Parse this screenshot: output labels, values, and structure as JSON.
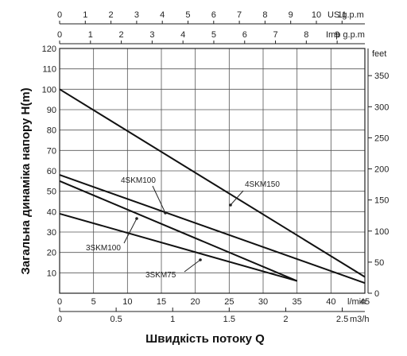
{
  "chart_data": {
    "type": "line",
    "ylabel": "Загальна динаміка напору H(m)",
    "xlabel": "Швидкість потоку Q",
    "x_unit": "l/min",
    "x_ticks": [
      0,
      5,
      10,
      15,
      20,
      25,
      30,
      35,
      40,
      45
    ],
    "xlim": [
      0,
      45
    ],
    "y_ticks": [
      0,
      10,
      20,
      30,
      40,
      50,
      60,
      70,
      80,
      90,
      100,
      110,
      120
    ],
    "ylim": [
      0,
      120
    ],
    "grid": true,
    "top_axis_us": {
      "unit": "US g.p.m",
      "ticks": [
        "0",
        "1",
        "2",
        "3",
        "4",
        "5",
        "6",
        "7",
        "8",
        "9",
        "10",
        "11"
      ]
    },
    "top_axis_imp": {
      "unit": "Imp g.p.m",
      "ticks": [
        "0",
        "1",
        "2",
        "3",
        "4",
        "5",
        "6",
        "7",
        "8",
        "9"
      ]
    },
    "right_axis_feet": {
      "unit": "feet",
      "ticks": [
        "0",
        "50",
        "100",
        "150",
        "200",
        "250",
        "300",
        "350"
      ]
    },
    "bottom_axis_m3h": {
      "unit": "m3/h",
      "ticks": [
        "0",
        "0.5",
        "1",
        "1.5",
        "2",
        "2.5"
      ]
    },
    "series": [
      {
        "name": "4SKM150",
        "x": [
          0,
          45
        ],
        "y": [
          100,
          8
        ]
      },
      {
        "name": "4SKM100",
        "x": [
          0,
          45
        ],
        "y": [
          58,
          5
        ]
      },
      {
        "name": "3SKM100",
        "x": [
          0,
          35
        ],
        "y": [
          55,
          6
        ]
      },
      {
        "name": "3SKM75",
        "x": [
          0,
          35
        ],
        "y": [
          39,
          6
        ]
      }
    ],
    "labels": {
      "4SKM150": "4SKM150",
      "4SKM100": "4SKM100",
      "3SKM100": "3SKM100",
      "3SKM75": "3SKM75"
    }
  }
}
